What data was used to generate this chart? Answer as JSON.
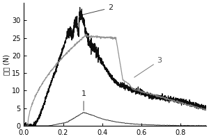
{
  "ylabel": "载荷 (N)",
  "xlim": [
    0.0,
    0.93
  ],
  "ylim": [
    0,
    35
  ],
  "yticks": [
    0,
    5,
    10,
    15,
    20,
    25,
    30
  ],
  "xticks": [
    0.0,
    0.2,
    0.4,
    0.6,
    0.8
  ],
  "xtick_labels": [
    "0.0",
    "0.2",
    "0.4",
    "0.6",
    "0.8"
  ],
  "background_color": "#ffffff",
  "curve1_color": "#1a1a1a",
  "curve2_color": "#000000",
  "curve3_color": "#888888",
  "label_fontsize": 8
}
